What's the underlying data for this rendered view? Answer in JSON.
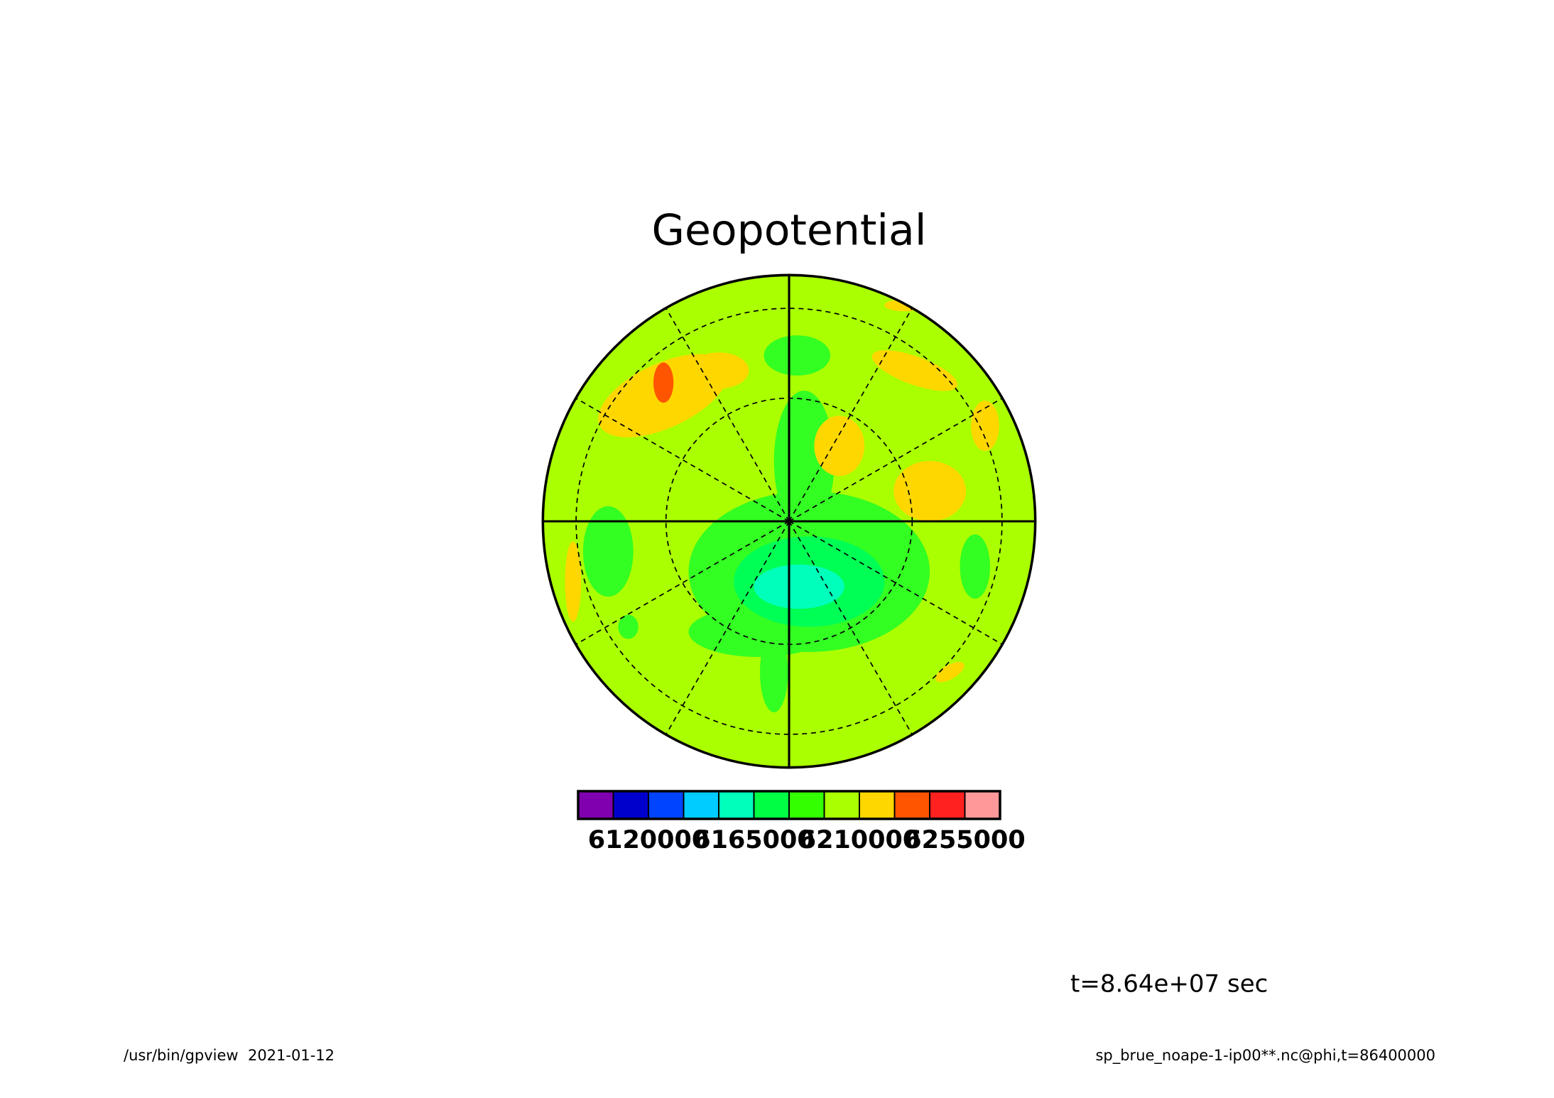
{
  "chart_data": {
    "type": "polar-contour",
    "title": "Geopotential",
    "colorbar": {
      "colors": [
        "#8000b0",
        "#0000cc",
        "#0044ff",
        "#00ccff",
        "#00ffbb",
        "#00ff44",
        "#33ff00",
        "#aaff00",
        "#ffd700",
        "#ff5500",
        "#ff2020",
        "#ff9999"
      ],
      "lim": [
        6090000,
        6270000
      ],
      "ticks": [
        6120000,
        6165000,
        6210000,
        6255000
      ]
    },
    "annotation": "t=8.64e+07 sec",
    "footer_left": "/usr/bin/gpview  2021-01-12",
    "footer_right": "sp_brue_noape-1-ip00**.nc@phi,t=86400000"
  }
}
